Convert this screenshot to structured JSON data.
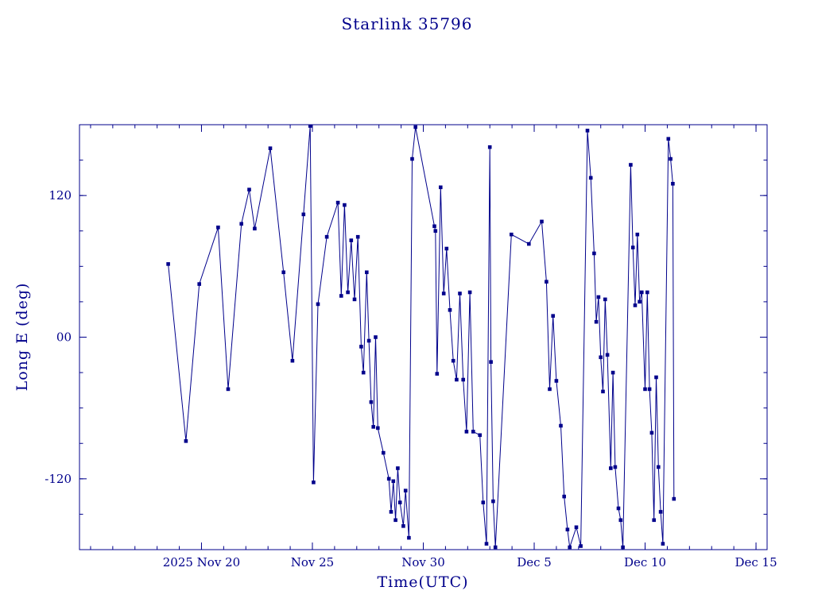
{
  "chart_data": {
    "type": "line",
    "title": "Starlink 35796",
    "xlabel": "Time(UTC)",
    "ylabel": "Long E (deg)",
    "line_color": "#00008B",
    "marker": "square",
    "background": "#ffffff",
    "grid": false,
    "legend": "none",
    "x_domain_days_since_nov15": [
      -0.5,
      30.5
    ],
    "ylim": [
      -180,
      180
    ],
    "x_ticks_major": [
      {
        "day": 5,
        "label": "2025 Nov 20"
      },
      {
        "day": 10,
        "label": "Nov 25"
      },
      {
        "day": 15,
        "label": "Nov 30"
      },
      {
        "day": 20,
        "label": "Dec 5"
      },
      {
        "day": 25,
        "label": "Dec 10"
      },
      {
        "day": 30,
        "label": "Dec 15"
      }
    ],
    "x_minor_step_days": 1,
    "y_ticks_major": [
      {
        "value": -120,
        "label": "-120"
      },
      {
        "value": 0,
        "label": "00"
      },
      {
        "value": 120,
        "label": "120"
      }
    ],
    "y_minor_step": 30,
    "series": [
      {
        "name": "longitude-east-deg",
        "points": [
          [
            3.5,
            62
          ],
          [
            4.3,
            -88
          ],
          [
            4.9,
            45
          ],
          [
            5.75,
            93
          ],
          [
            6.2,
            -44
          ],
          [
            6.8,
            96
          ],
          [
            7.15,
            125
          ],
          [
            7.4,
            92
          ],
          [
            8.1,
            160
          ],
          [
            8.7,
            55
          ],
          [
            9.1,
            -20
          ],
          [
            9.6,
            104
          ],
          [
            9.9,
            179
          ],
          [
            10.05,
            -123
          ],
          [
            10.25,
            28
          ],
          [
            10.65,
            85
          ],
          [
            11.15,
            114
          ],
          [
            11.3,
            35
          ],
          [
            11.45,
            112
          ],
          [
            11.6,
            38
          ],
          [
            11.75,
            82
          ],
          [
            11.9,
            32
          ],
          [
            12.05,
            85
          ],
          [
            12.2,
            -8
          ],
          [
            12.3,
            -30
          ],
          [
            12.45,
            55
          ],
          [
            12.55,
            -3
          ],
          [
            12.65,
            -55
          ],
          [
            12.75,
            -76
          ],
          [
            12.85,
            0
          ],
          [
            12.95,
            -77
          ],
          [
            13.2,
            -98
          ],
          [
            13.45,
            -120
          ],
          [
            13.55,
            -148
          ],
          [
            13.65,
            -122
          ],
          [
            13.75,
            -155
          ],
          [
            13.85,
            -111
          ],
          [
            13.95,
            -140
          ],
          [
            14.1,
            -160
          ],
          [
            14.2,
            -130
          ],
          [
            14.35,
            -170
          ],
          [
            14.5,
            151
          ],
          [
            14.65,
            178
          ],
          [
            15.5,
            94
          ],
          [
            15.55,
            90
          ],
          [
            15.62,
            -31
          ],
          [
            15.78,
            127
          ],
          [
            15.92,
            37
          ],
          [
            16.05,
            75
          ],
          [
            16.2,
            23
          ],
          [
            16.35,
            -20
          ],
          [
            16.5,
            -36
          ],
          [
            16.65,
            37
          ],
          [
            16.8,
            -36
          ],
          [
            16.95,
            -80
          ],
          [
            17.1,
            38
          ],
          [
            17.25,
            -80
          ],
          [
            17.55,
            -83
          ],
          [
            17.7,
            -140
          ],
          [
            17.85,
            -175
          ],
          [
            18.0,
            161
          ],
          [
            18.05,
            -21
          ],
          [
            18.15,
            -139
          ],
          [
            18.25,
            -178
          ],
          [
            18.97,
            87
          ],
          [
            19.76,
            79
          ],
          [
            20.34,
            98
          ],
          [
            20.55,
            47
          ],
          [
            20.7,
            -44
          ],
          [
            20.85,
            18
          ],
          [
            21.0,
            -37
          ],
          [
            21.2,
            -75
          ],
          [
            21.35,
            -135
          ],
          [
            21.5,
            -163
          ],
          [
            21.6,
            -178
          ],
          [
            21.9,
            -161
          ],
          [
            22.1,
            -177
          ],
          [
            22.4,
            175
          ],
          [
            22.55,
            135
          ],
          [
            22.7,
            71
          ],
          [
            22.8,
            13
          ],
          [
            22.9,
            34
          ],
          [
            23.0,
            -17
          ],
          [
            23.1,
            -46
          ],
          [
            23.2,
            32
          ],
          [
            23.3,
            -15
          ],
          [
            23.45,
            -111
          ],
          [
            23.55,
            -30
          ],
          [
            23.65,
            -110
          ],
          [
            23.8,
            -145
          ],
          [
            23.9,
            -155
          ],
          [
            24.0,
            -178
          ],
          [
            24.35,
            146
          ],
          [
            24.45,
            76
          ],
          [
            24.55,
            27
          ],
          [
            24.65,
            87
          ],
          [
            24.75,
            30
          ],
          [
            24.85,
            38
          ],
          [
            25.0,
            -44
          ],
          [
            25.1,
            38
          ],
          [
            25.2,
            -44
          ],
          [
            25.3,
            -81
          ],
          [
            25.4,
            -155
          ],
          [
            25.5,
            -34
          ],
          [
            25.6,
            -110
          ],
          [
            25.7,
            -148
          ],
          [
            25.8,
            -175
          ],
          [
            26.05,
            168
          ],
          [
            26.15,
            151
          ],
          [
            26.25,
            130
          ],
          [
            26.3,
            -137
          ]
        ]
      }
    ]
  }
}
